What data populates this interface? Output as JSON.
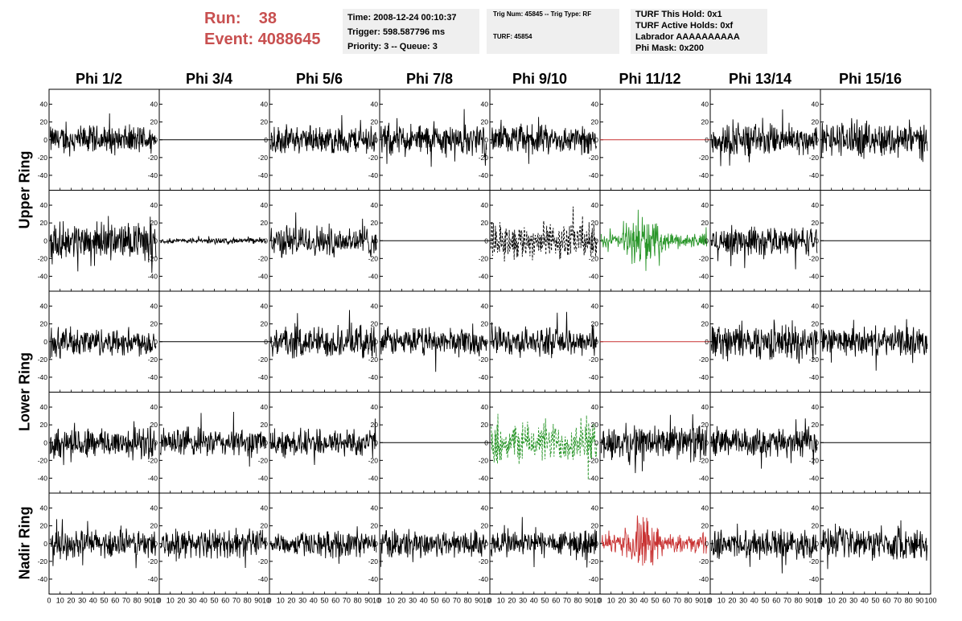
{
  "header": {
    "run_label": "Run:",
    "run_value": "38",
    "event_label": "Event:",
    "event_value": "4088645",
    "time": "Time: 2008-12-24 00:10:37",
    "trigger": "Trigger: 598.587796 ms",
    "priority": "Priority: 3 -- Queue: 3",
    "trig_num": "Trig Num: 45845 -- Trig Type: RF",
    "turf": "TURF: 45854",
    "turf_this_hold": "TURF This Hold: 0x1",
    "turf_active_holds": "TURF Active Holds: 0xf",
    "labrador": "Labrador AAAAAAAAAA",
    "phi_mask": "Phi Mask: 0x200",
    "accent_color": "#c85050"
  },
  "columns": [
    "Phi 1/2",
    "Phi 3/4",
    "Phi 5/6",
    "Phi 7/8",
    "Phi 9/10",
    "Phi 11/12",
    "Phi 13/14",
    "Phi 15/16"
  ],
  "rows": [
    {
      "label": "Upper Ring",
      "span": [
        0,
        1
      ]
    },
    {
      "label": "Lower Ring",
      "span": [
        2,
        3
      ]
    },
    {
      "label": "Nadir Ring",
      "span": [
        4,
        4
      ]
    }
  ],
  "chart_data": {
    "type": "line",
    "grid": false,
    "xlim": [
      0,
      100
    ],
    "ylim": [
      -55,
      55
    ],
    "y_ticks": [
      -40,
      -20,
      0,
      20,
      40
    ],
    "x_ticks": [
      0,
      10,
      20,
      30,
      40,
      50,
      60,
      70,
      80,
      90,
      100
    ],
    "x_tick_labels": [
      "0",
      "10",
      "20",
      "30",
      "40",
      "50",
      "60",
      "70",
      "80",
      "90",
      "100"
    ],
    "x_tick_label_overflow": "10",
    "panels": [
      [
        {
          "style": "noise",
          "amp": 16,
          "color": "#000000"
        },
        {
          "style": "flat",
          "color": "#000000"
        },
        {
          "style": "noise",
          "amp": 16,
          "color": "#000000"
        },
        {
          "style": "noise",
          "amp": 18,
          "color": "#000000"
        },
        {
          "style": "noise",
          "amp": 16,
          "color": "#000000"
        },
        {
          "style": "flat",
          "color": "#c83232"
        },
        {
          "style": "noise",
          "amp": 18,
          "color": "#000000"
        },
        {
          "style": "noise",
          "amp": 20,
          "color": "#000000"
        }
      ],
      [
        {
          "style": "noise",
          "amp": 20,
          "color": "#000000"
        },
        {
          "style": "small",
          "amp": 3,
          "color": "#000000"
        },
        {
          "style": "noise",
          "amp": 18,
          "color": "#000000"
        },
        {
          "style": "flat",
          "color": "#000000"
        },
        {
          "style": "dashed",
          "amp": 20,
          "color": "#000000"
        },
        {
          "style": "burst",
          "amp": 18,
          "color": "#2a962a"
        },
        {
          "style": "noise",
          "amp": 16,
          "color": "#000000"
        },
        {
          "style": "flat",
          "color": "#000000"
        }
      ],
      [
        {
          "style": "noise",
          "amp": 16,
          "color": "#000000"
        },
        {
          "style": "flat",
          "color": "#000000"
        },
        {
          "style": "noise",
          "amp": 18,
          "color": "#000000"
        },
        {
          "style": "noise",
          "amp": 16,
          "color": "#000000"
        },
        {
          "style": "noise",
          "amp": 16,
          "color": "#000000"
        },
        {
          "style": "flat",
          "color": "#c83232"
        },
        {
          "style": "noise",
          "amp": 20,
          "color": "#000000"
        },
        {
          "style": "noise",
          "amp": 16,
          "color": "#000000"
        }
      ],
      [
        {
          "style": "noise",
          "amp": 18,
          "color": "#000000"
        },
        {
          "style": "noise",
          "amp": 16,
          "color": "#000000"
        },
        {
          "style": "noise",
          "amp": 16,
          "color": "#000000"
        },
        {
          "style": "flat",
          "color": "#000000"
        },
        {
          "style": "dashed",
          "amp": 22,
          "color": "#2a962a"
        },
        {
          "style": "noise",
          "amp": 20,
          "color": "#000000"
        },
        {
          "style": "noise",
          "amp": 16,
          "color": "#000000"
        },
        {
          "style": "flat",
          "color": "#000000"
        }
      ],
      [
        {
          "style": "noise",
          "amp": 16,
          "color": "#000000"
        },
        {
          "style": "noise",
          "amp": 16,
          "color": "#000000"
        },
        {
          "style": "noise",
          "amp": 14,
          "color": "#000000"
        },
        {
          "style": "noise",
          "amp": 16,
          "color": "#000000"
        },
        {
          "style": "noise",
          "amp": 16,
          "color": "#000000"
        },
        {
          "style": "burst",
          "amp": 20,
          "color": "#c83232"
        },
        {
          "style": "noise",
          "amp": 16,
          "color": "#000000"
        },
        {
          "style": "noise",
          "amp": 18,
          "color": "#000000"
        }
      ]
    ]
  }
}
